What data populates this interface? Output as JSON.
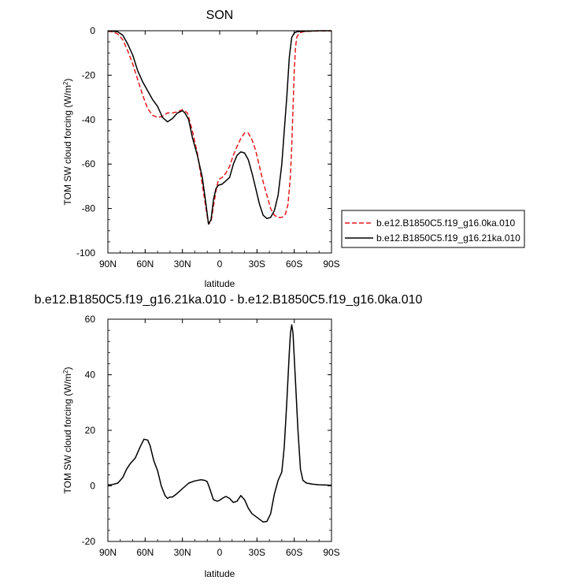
{
  "chart_data": [
    {
      "type": "line",
      "title": "SON",
      "xlabel": "latitude",
      "ylabel": "TOM SW cloud forcing (W/m",
      "ylabel_sup": "2",
      "ylabel_close": ")",
      "xlim": [
        90,
        -90
      ],
      "ylim": [
        -100,
        0
      ],
      "xticks": [
        90,
        60,
        30,
        0,
        -30,
        -60,
        -90
      ],
      "xtick_labels": [
        "90N",
        "60N",
        "30N",
        "0",
        "30S",
        "60S",
        "90S"
      ],
      "yticks": [
        0,
        -20,
        -40,
        -60,
        -80,
        -100
      ],
      "ytick_labels": [
        "0",
        "-20",
        "-40",
        "-60",
        "-80",
        "-100"
      ],
      "legend_position": "right",
      "series": [
        {
          "name": "b.e12.B1850C5.f19_g16.0ka.010",
          "color": "#e41a1c",
          "dash": "dashed",
          "x": [
            90,
            86,
            82,
            78,
            74,
            70,
            66,
            62,
            58,
            54,
            50,
            46,
            42,
            38,
            34,
            30,
            26,
            22,
            18,
            14,
            11,
            9,
            7,
            5,
            3,
            1,
            -2,
            -5,
            -8,
            -11,
            -14,
            -17,
            -20,
            -23,
            -26,
            -29,
            -32,
            -35,
            -38,
            -41,
            -44,
            -47,
            -50,
            -53,
            -55,
            -57,
            -58,
            -59,
            -60,
            -61,
            -62,
            -64,
            -67,
            -70,
            -75,
            -80,
            -85,
            -90
          ],
          "y": [
            -0.2,
            -0.5,
            -1.5,
            -4,
            -9,
            -15,
            -22,
            -29,
            -35,
            -38,
            -39,
            -38.5,
            -37,
            -37,
            -36.5,
            -35.5,
            -37,
            -45,
            -55,
            -69,
            -80,
            -87,
            -86,
            -79,
            -72,
            -67,
            -66,
            -64,
            -61,
            -56,
            -52,
            -48.5,
            -46,
            -46,
            -49,
            -54,
            -61,
            -68,
            -74,
            -80,
            -83,
            -84,
            -84,
            -82.5,
            -78,
            -65,
            -52,
            -35,
            -18,
            -8,
            -3,
            -1,
            -0.5,
            -0.3,
            -0.2,
            -0.1,
            -0.1,
            -0.1
          ]
        },
        {
          "name": "b.e12.B1850C5.f19_g16.21ka.010",
          "color": "#000000",
          "dash": "solid",
          "x": [
            90,
            86,
            82,
            78,
            74,
            70,
            66,
            62,
            58,
            54,
            50,
            46,
            42,
            38,
            34,
            32,
            30,
            28,
            25,
            22,
            18,
            14,
            11,
            9,
            7,
            5,
            3,
            1,
            -2,
            -5,
            -8,
            -11,
            -14,
            -17,
            -20,
            -23,
            -26,
            -29,
            -32,
            -35,
            -38,
            -41,
            -44,
            -47,
            -50,
            -52,
            -54,
            -56,
            -58,
            -60,
            -62,
            -65,
            -70,
            -75,
            -80,
            -85,
            -90
          ],
          "y": [
            -0.1,
            -0.2,
            -0.5,
            -2,
            -6,
            -11,
            -18,
            -23,
            -27,
            -31,
            -34,
            -39,
            -41,
            -39.5,
            -37,
            -36.5,
            -36,
            -37,
            -40,
            -48,
            -56,
            -66,
            -78,
            -87,
            -85,
            -76,
            -71,
            -69.5,
            -69,
            -67.5,
            -66,
            -60,
            -56,
            -54.5,
            -55,
            -58,
            -64,
            -71,
            -78,
            -83,
            -84.5,
            -84,
            -81,
            -74,
            -60,
            -45,
            -30,
            -12,
            -3,
            -1,
            -0.5,
            -0.3,
            -0.2,
            -0.1,
            0,
            0,
            0
          ]
        }
      ]
    },
    {
      "type": "line",
      "title": "b.e12.B1850C5.f19_g16.21ka.010 - b.e12.B1850C5.f19_g16.0ka.010",
      "xlabel": "latitude",
      "ylabel": "TOM SW cloud forcing (W/m",
      "ylabel_sup": "2",
      "ylabel_close": ")",
      "xlim": [
        90,
        -90
      ],
      "ylim": [
        -20,
        60
      ],
      "xticks": [
        90,
        60,
        30,
        0,
        -30,
        -60,
        -90
      ],
      "xtick_labels": [
        "90N",
        "60N",
        "30N",
        "0",
        "30S",
        "60S",
        "90S"
      ],
      "yticks": [
        60,
        40,
        20,
        0,
        -20
      ],
      "ytick_labels": [
        "60",
        "40",
        "20",
        "0",
        "-20"
      ],
      "series": [
        {
          "color": "#000000",
          "dash": "solid",
          "x": [
            90,
            86,
            82,
            78,
            75,
            72,
            68,
            64,
            61,
            58,
            56,
            53,
            50,
            47,
            44,
            42,
            40,
            38,
            35,
            30,
            25,
            20,
            15,
            12,
            10,
            8,
            5,
            2,
            0,
            -2,
            -5,
            -8,
            -11,
            -14,
            -17,
            -20,
            -23,
            -26,
            -29,
            -32,
            -35,
            -38,
            -41,
            -44,
            -47,
            -50,
            -52,
            -54,
            -56,
            -57,
            -58,
            -59,
            -61,
            -63,
            -65,
            -67,
            -70,
            -75,
            -80,
            -85,
            -90
          ],
          "y": [
            0.3,
            0.5,
            1,
            3,
            6,
            8,
            10,
            14,
            16.8,
            16.5,
            14.5,
            9,
            5.5,
            0,
            -3.5,
            -4.5,
            -4,
            -4,
            -3,
            -1,
            1,
            1.8,
            2.2,
            2,
            1.5,
            -1,
            -5,
            -5.5,
            -5.2,
            -4.5,
            -3.8,
            -4.5,
            -6,
            -5.5,
            -3.5,
            -5,
            -8,
            -10,
            -11,
            -12,
            -13,
            -12.8,
            -10,
            -3,
            2,
            5,
            14,
            30,
            48,
            55,
            58,
            55,
            38,
            20,
            6,
            2,
            1,
            0.6,
            0.4,
            0.3,
            0.2
          ]
        }
      ]
    }
  ]
}
